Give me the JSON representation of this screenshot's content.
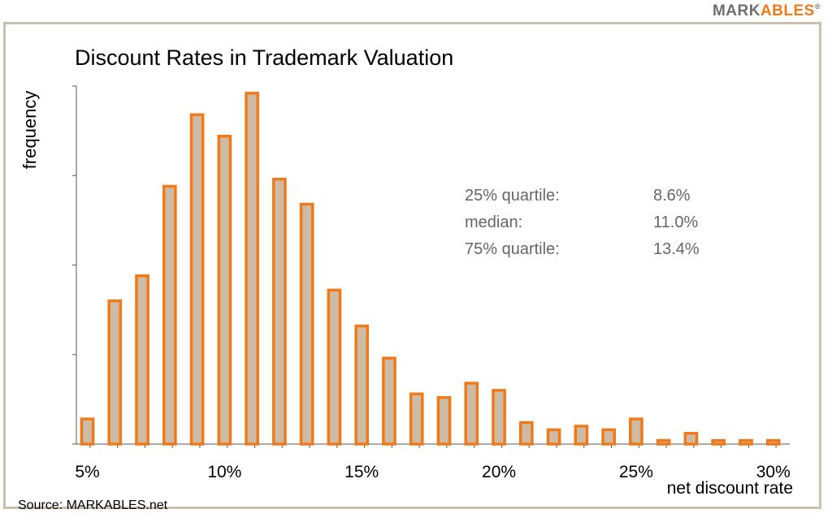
{
  "brand": {
    "part1": "MARK",
    "part2": "ABLES",
    "mark": "®"
  },
  "source": "Source: MARKABLES.net",
  "annotations": [
    {
      "label": "25% quartile:",
      "value": "8.6%"
    },
    {
      "label": "median:",
      "value": "11.0%"
    },
    {
      "label": "75% quartile:",
      "value": "13.4%"
    }
  ],
  "colors": {
    "bar_fill": "#cdbba5",
    "bar_stroke": "#f07a1a",
    "frame": "#cbbfae",
    "axis": "#555555"
  },
  "chart_data": {
    "type": "bar",
    "title": "Discount Rates in Trademark Valuation",
    "xlabel": "net discount rate",
    "ylabel": "frequency",
    "x": [
      5,
      6,
      7,
      8,
      9,
      10,
      11,
      12,
      13,
      14,
      15,
      16,
      17,
      18,
      19,
      20,
      21,
      22,
      23,
      24,
      25,
      26,
      27,
      28,
      29,
      30
    ],
    "values": [
      7,
      40,
      47,
      72,
      92,
      86,
      98,
      74,
      67,
      43,
      33,
      24,
      14,
      13,
      17,
      15,
      6,
      4,
      5,
      4,
      7,
      1,
      3,
      1,
      1,
      1
    ],
    "xticks": [
      5,
      10,
      15,
      20,
      25,
      30
    ],
    "xtick_labels": [
      "5%",
      "10%",
      "15%",
      "20%",
      "25%",
      "30%"
    ],
    "xlim": [
      4.6,
      30.6
    ],
    "ylim": [
      0,
      100
    ],
    "ytick_count": 4,
    "grid": false,
    "legend": "none"
  }
}
